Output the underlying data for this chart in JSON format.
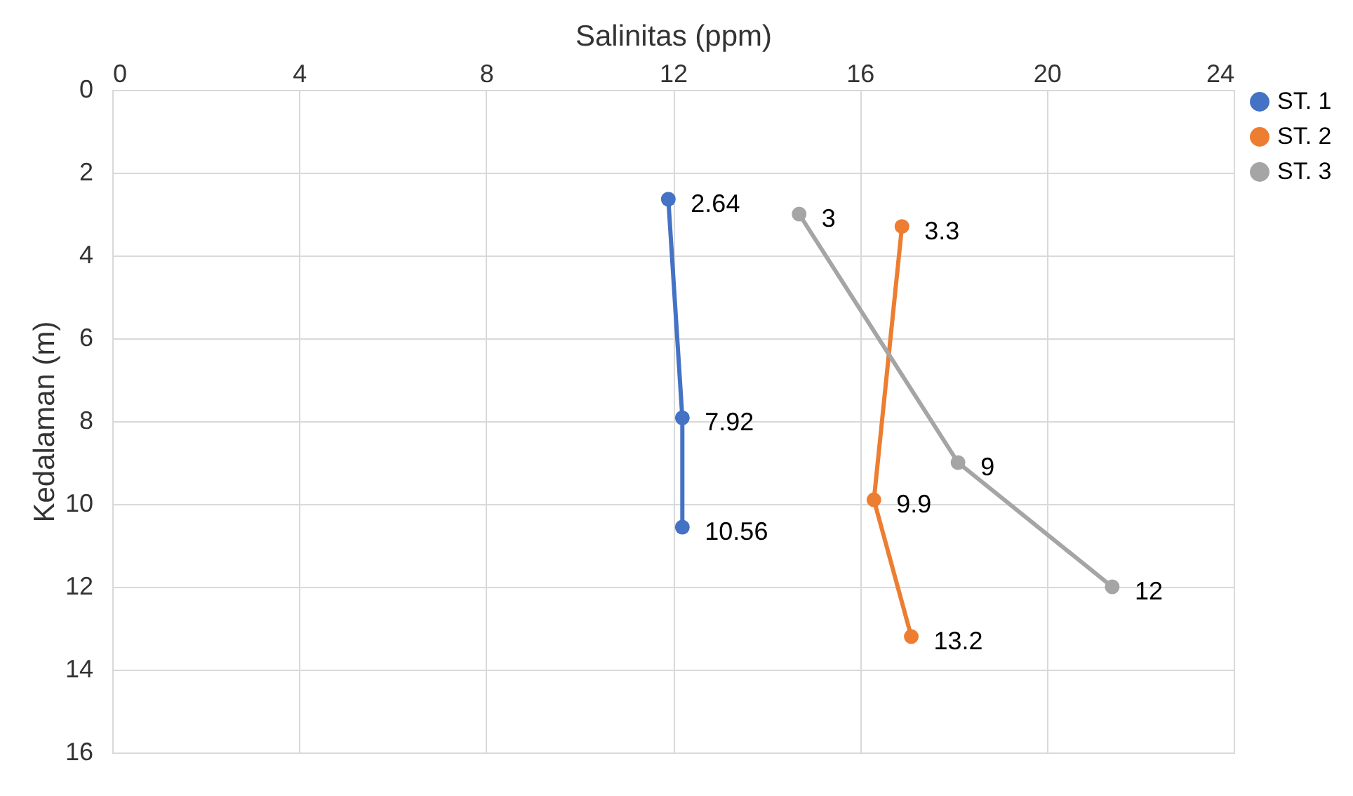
{
  "chart_data": {
    "type": "line",
    "xlabel": "Salinitas (ppm)",
    "ylabel": "Kedalaman (m)",
    "xlim": [
      0,
      24
    ],
    "xticks": [
      0,
      4,
      8,
      12,
      16,
      20,
      24
    ],
    "ylim": [
      16,
      0
    ],
    "yticks": [
      0,
      2,
      4,
      6,
      8,
      10,
      12,
      14,
      16
    ],
    "grid": true,
    "legend": "right",
    "marker": "circle",
    "line_style": "solid",
    "data_labels": true,
    "series": [
      {
        "name": "ST. 1",
        "color": "#4472c4",
        "x": [
          11.9,
          12.2,
          12.2
        ],
        "values": [
          2.64,
          7.92,
          10.56
        ]
      },
      {
        "name": "ST. 2",
        "color": "#ed7d31",
        "x": [
          16.9,
          16.3,
          17.1
        ],
        "values": [
          3.3,
          9.9,
          13.2
        ]
      },
      {
        "name": "ST. 3",
        "color": "#a5a5a5",
        "x": [
          14.7,
          18.1,
          21.4
        ],
        "values": [
          3,
          9,
          12
        ]
      }
    ]
  }
}
